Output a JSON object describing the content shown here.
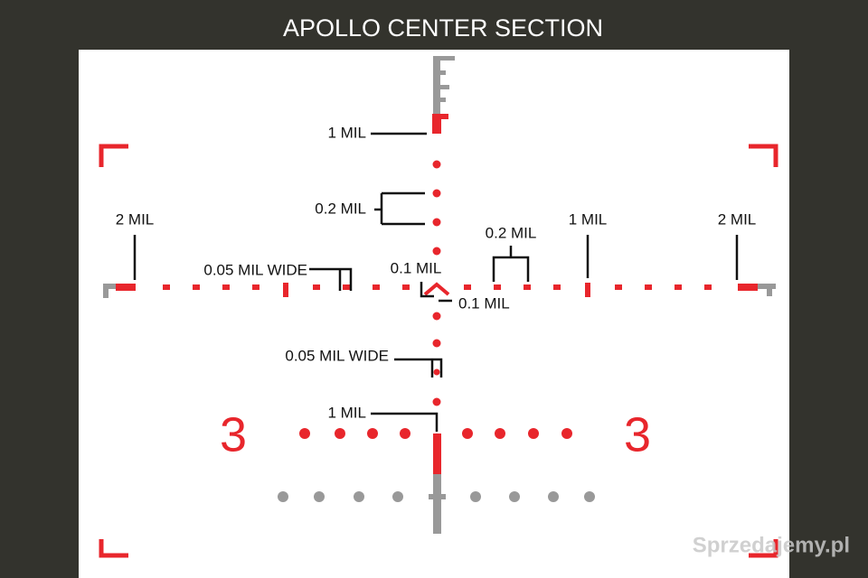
{
  "header": {
    "title": "APOLLO CENTER SECTION"
  },
  "labels": [
    "1 MIL",
    "0.2 MIL",
    "2 MIL",
    "0.05 MIL WIDE",
    "0.1 MIL",
    "0.2 MIL",
    "1 MIL",
    "2 MIL",
    "0.1 MIL",
    "0.05 MIL WIDE",
    "1 MIL"
  ],
  "range_numbers": [
    "3",
    "3"
  ],
  "watermark": "Sprzedajemy.pl"
}
